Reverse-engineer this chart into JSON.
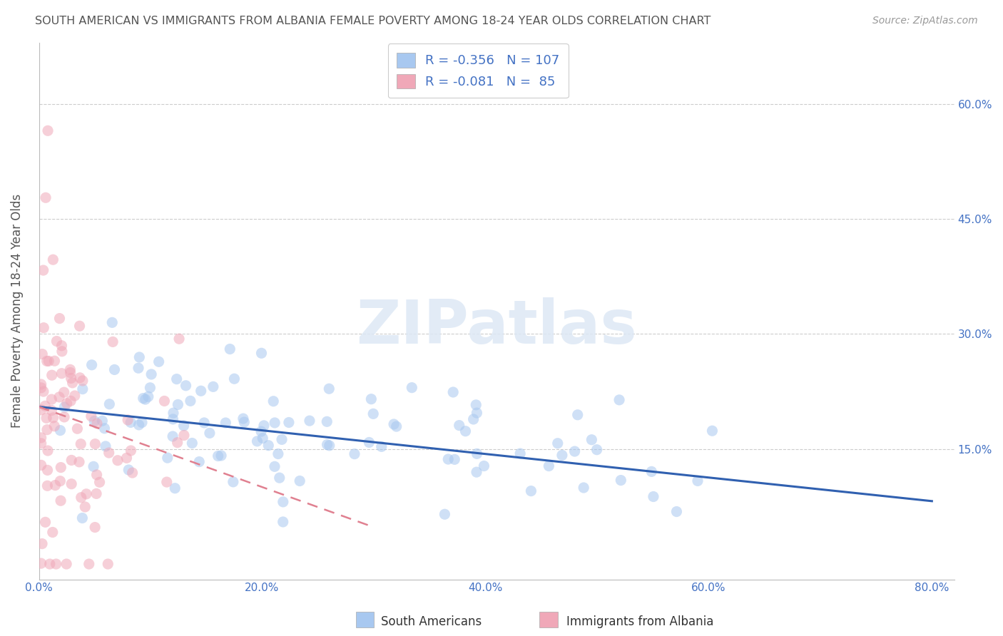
{
  "title": "SOUTH AMERICAN VS IMMIGRANTS FROM ALBANIA FEMALE POVERTY AMONG 18-24 YEAR OLDS CORRELATION CHART",
  "source": "Source: ZipAtlas.com",
  "ylabel": "Female Poverty Among 18-24 Year Olds",
  "xlim": [
    0.0,
    0.82
  ],
  "ylim": [
    -0.02,
    0.68
  ],
  "ytick_vals": [
    0.0,
    0.15,
    0.3,
    0.45,
    0.6
  ],
  "xtick_vals": [
    0.0,
    0.2,
    0.4,
    0.6,
    0.8
  ],
  "right_ytick_vals": [
    0.15,
    0.3,
    0.45,
    0.6
  ],
  "south_american_color": "#a8c8f0",
  "albania_color": "#f0a8b8",
  "south_american_line_color": "#3060b0",
  "albania_line_color": "#e08090",
  "south_american_R": -0.356,
  "south_american_N": 107,
  "albania_R": -0.081,
  "albania_N": 85,
  "legend_label_1": "South Americans",
  "legend_label_2": "Immigrants from Albania",
  "watermark_text": "ZIPatlas",
  "background_color": "#ffffff",
  "grid_color": "#cccccc",
  "title_color": "#555555",
  "axis_color": "#4472c4",
  "scatter_alpha": 0.55,
  "scatter_size": 120,
  "seed": 99
}
